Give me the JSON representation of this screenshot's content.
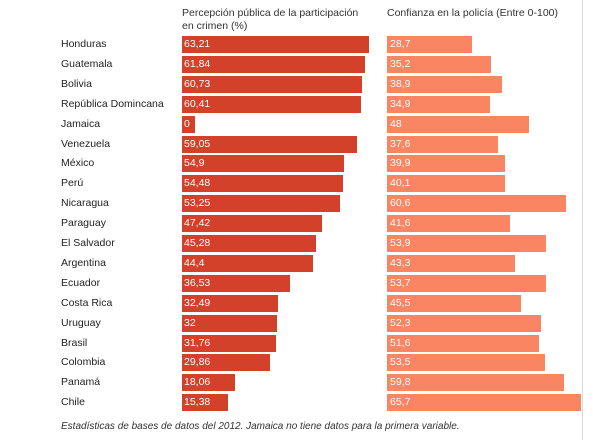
{
  "chart_data": {
    "type": "bar",
    "series": [
      {
        "name": "Percepción pública de la participación en crimen (%)",
        "color": "#d4412b",
        "values": [
          63.21,
          61.84,
          60.73,
          60.41,
          0,
          59.05,
          54.9,
          54.48,
          53.25,
          47.42,
          45.28,
          44.4,
          36.53,
          32.49,
          32,
          31.76,
          29.86,
          18.06,
          15.38
        ],
        "labels": [
          "63,21",
          "61,84",
          "60,73",
          "60,41",
          "0",
          "59,05",
          "54,9",
          "54,48",
          "53,25",
          "47,42",
          "45,28",
          "44,4",
          "36,53",
          "32,49",
          "32",
          "31,76",
          "29,86",
          "18,06",
          "15,38"
        ]
      },
      {
        "name": "Confianza en la policía (Entre 0-100)",
        "color": "#f98563",
        "values": [
          28.7,
          35.2,
          38.9,
          34.9,
          48,
          37.6,
          39.9,
          40.1,
          60.6,
          41.6,
          53.9,
          43.3,
          53.7,
          45.5,
          52.3,
          51.6,
          53.5,
          59.8,
          65.7
        ],
        "labels": [
          "28,7",
          "35,2",
          "38,9",
          "34,9",
          "48",
          "37,6",
          "39,9",
          "40,1",
          "60,6",
          "41,6",
          "53,9",
          "43,3",
          "53,7",
          "45,5",
          "52,3",
          "51,6",
          "53,5",
          "59,8",
          "65,7"
        ]
      }
    ],
    "categories": [
      "Honduras",
      "Guatemala",
      "Bolivia",
      "República Domincana",
      "Jamaica",
      "Venezuela",
      "México",
      "Perú",
      "Nicaragua",
      "Paraguay",
      "El Salvador",
      "Argentina",
      "Ecuador",
      "Costa Rica",
      "Uruguay",
      "Brasil",
      "Colombia",
      "Panamá",
      "Chile"
    ],
    "headers": {
      "left": "Percepción pública de la participación en crimen (%)",
      "right": "Confianza en la policía (Entre 0-100)"
    },
    "footnote": "Estadísticas de bases de datos del 2012. Jamaica no tiene datos para la primera variable.",
    "orientation": "horizontal"
  }
}
